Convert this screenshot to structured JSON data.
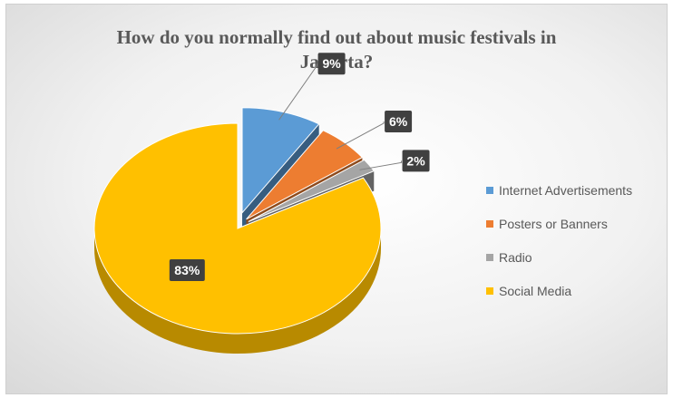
{
  "chart_data": {
    "type": "pie",
    "title_lines": [
      "How do you normally find out about music festivals in",
      "Jakarta?"
    ],
    "categories": [
      "Internet Advertisements",
      "Posters or Banners",
      "Radio",
      "Social Media"
    ],
    "values": [
      9,
      6,
      2,
      83
    ],
    "data_labels": [
      "9%",
      "6%",
      "2%",
      "83%"
    ],
    "colors": [
      "#5B9BD5",
      "#ED7D31",
      "#A5A5A5",
      "#FFC000"
    ],
    "exploded": true,
    "three_d": true,
    "legend_position": "right"
  }
}
